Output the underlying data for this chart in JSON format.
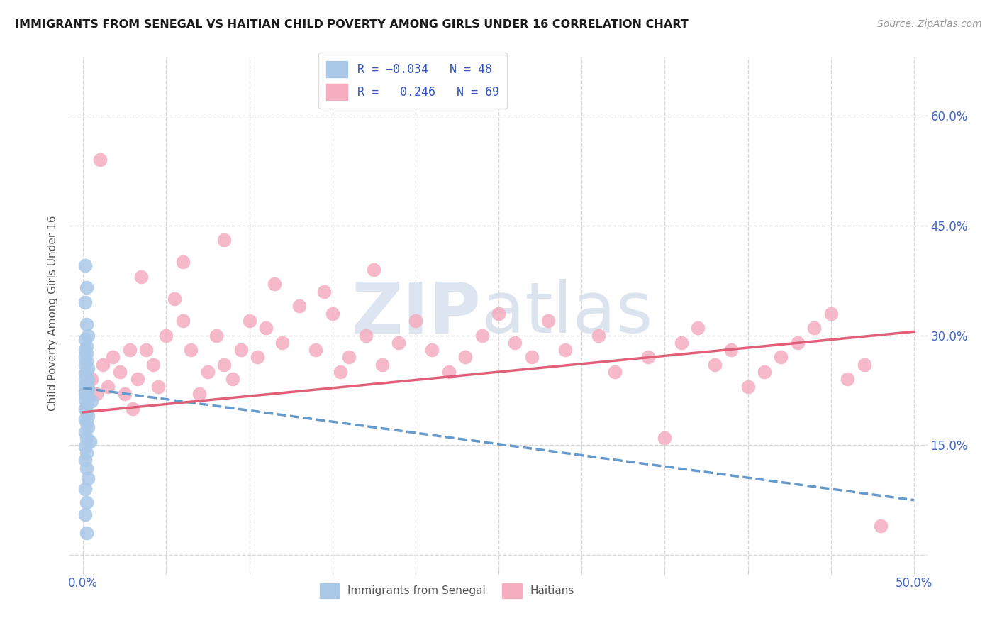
{
  "title": "IMMIGRANTS FROM SENEGAL VS HAITIAN CHILD POVERTY AMONG GIRLS UNDER 16 CORRELATION CHART",
  "source": "Source: ZipAtlas.com",
  "ylabel": "Child Poverty Among Girls Under 16",
  "xlim": [
    0.0,
    0.5
  ],
  "ylim": [
    0.0,
    0.65
  ],
  "background_color": "#ffffff",
  "grid_color": "#d8d8d8",
  "senegal_color": "#aac8e8",
  "haitian_color": "#f5adc0",
  "R_senegal": -0.034,
  "N_senegal": 48,
  "R_haitian": 0.246,
  "N_haitian": 69,
  "senegal_line_color": "#6699cc",
  "haitian_line_color": "#e0607a",
  "senegal_x": [
    0.001,
    0.002,
    0.001,
    0.002,
    0.003,
    0.001,
    0.002,
    0.001,
    0.002,
    0.001,
    0.002,
    0.001,
    0.003,
    0.002,
    0.001,
    0.002,
    0.001,
    0.003,
    0.002,
    0.001,
    0.002,
    0.003,
    0.001,
    0.002,
    0.001,
    0.002,
    0.003,
    0.001,
    0.005,
    0.002,
    0.001,
    0.002,
    0.003,
    0.001,
    0.002,
    0.003,
    0.001,
    0.002,
    0.004,
    0.001,
    0.002,
    0.001,
    0.002,
    0.003,
    0.001,
    0.002,
    0.001,
    0.002
  ],
  "senegal_y": [
    0.395,
    0.365,
    0.345,
    0.315,
    0.3,
    0.295,
    0.285,
    0.28,
    0.275,
    0.27,
    0.265,
    0.26,
    0.255,
    0.25,
    0.248,
    0.245,
    0.24,
    0.238,
    0.235,
    0.232,
    0.23,
    0.228,
    0.225,
    0.222,
    0.22,
    0.218,
    0.215,
    0.212,
    0.21,
    0.205,
    0.2,
    0.195,
    0.19,
    0.185,
    0.18,
    0.175,
    0.168,
    0.16,
    0.155,
    0.148,
    0.14,
    0.13,
    0.118,
    0.105,
    0.09,
    0.072,
    0.055,
    0.03
  ],
  "haitian_x": [
    0.005,
    0.008,
    0.012,
    0.015,
    0.018,
    0.022,
    0.025,
    0.028,
    0.03,
    0.033,
    0.038,
    0.042,
    0.045,
    0.05,
    0.055,
    0.06,
    0.065,
    0.07,
    0.075,
    0.08,
    0.085,
    0.09,
    0.095,
    0.1,
    0.105,
    0.11,
    0.12,
    0.13,
    0.14,
    0.15,
    0.155,
    0.16,
    0.17,
    0.18,
    0.19,
    0.2,
    0.21,
    0.22,
    0.23,
    0.24,
    0.25,
    0.26,
    0.27,
    0.28,
    0.29,
    0.31,
    0.32,
    0.34,
    0.36,
    0.37,
    0.38,
    0.39,
    0.4,
    0.41,
    0.42,
    0.43,
    0.44,
    0.45,
    0.46,
    0.47,
    0.01,
    0.035,
    0.06,
    0.085,
    0.115,
    0.145,
    0.175,
    0.35,
    0.48
  ],
  "haitian_y": [
    0.24,
    0.22,
    0.26,
    0.23,
    0.27,
    0.25,
    0.22,
    0.28,
    0.2,
    0.24,
    0.28,
    0.26,
    0.23,
    0.3,
    0.35,
    0.32,
    0.28,
    0.22,
    0.25,
    0.3,
    0.26,
    0.24,
    0.28,
    0.32,
    0.27,
    0.31,
    0.29,
    0.34,
    0.28,
    0.33,
    0.25,
    0.27,
    0.3,
    0.26,
    0.29,
    0.32,
    0.28,
    0.25,
    0.27,
    0.3,
    0.33,
    0.29,
    0.27,
    0.32,
    0.28,
    0.3,
    0.25,
    0.27,
    0.29,
    0.31,
    0.26,
    0.28,
    0.23,
    0.25,
    0.27,
    0.29,
    0.31,
    0.33,
    0.24,
    0.26,
    0.54,
    0.38,
    0.4,
    0.43,
    0.37,
    0.36,
    0.39,
    0.16,
    0.04
  ],
  "sen_trend_x0": 0.0,
  "sen_trend_y0": 0.228,
  "sen_trend_x1": 0.5,
  "sen_trend_y1": 0.075,
  "hai_trend_x0": 0.0,
  "hai_trend_y0": 0.195,
  "hai_trend_x1": 0.5,
  "hai_trend_y1": 0.305
}
